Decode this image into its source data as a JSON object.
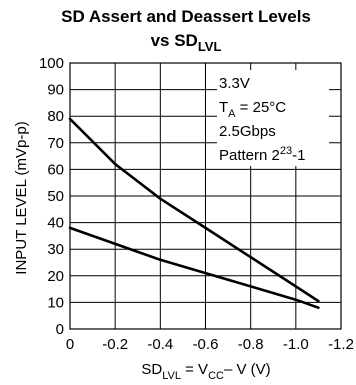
{
  "chart_data": {
    "type": "line",
    "title": "SD Assert and Deassert Levels",
    "subtitle_main": "vs SD",
    "subtitle_sub": "LVL",
    "xlabel": {
      "main": "SD",
      "sub1": "LVL",
      "mid": " = V",
      "sub2": "CC",
      "end": "– V (V)"
    },
    "ylabel": "INPUT LEVEL (mVp-p)",
    "xlim": [
      0,
      -1.2
    ],
    "ylim": [
      0,
      100
    ],
    "xticks": [
      "0",
      "-0.2",
      "-0.4",
      "-0.6",
      "-0.8",
      "-1.0",
      "-1.2"
    ],
    "xtick_values": [
      0,
      -0.2,
      -0.4,
      -0.6,
      -0.8,
      -1.0,
      -1.2
    ],
    "yticks": [
      "100",
      "90",
      "80",
      "70",
      "60",
      "50",
      "40",
      "30",
      "20",
      "10",
      "0"
    ],
    "ytick_values": [
      100,
      90,
      80,
      70,
      60,
      50,
      40,
      30,
      20,
      10,
      0
    ],
    "grid": true,
    "series": [
      {
        "x": [
          0,
          -0.2,
          -0.4,
          -0.6,
          -0.8,
          -1.0,
          -1.1
        ],
        "y": [
          79,
          62,
          49,
          38,
          27,
          16,
          10.5
        ]
      },
      {
        "x": [
          0,
          -0.2,
          -0.4,
          -0.6,
          -0.8,
          -1.0,
          -1.1
        ],
        "y": [
          38,
          32,
          26,
          21,
          16,
          11,
          8
        ]
      }
    ],
    "annotation": {
      "line1": "3.3V",
      "line2_main": "T",
      "line2_sub": "A",
      "line2_end": " = 25°C",
      "line3": "2.5Gbps",
      "line4_main": "Pattern 2",
      "line4_sup": "23",
      "line4_end": "-1",
      "placement": "top-right"
    }
  }
}
